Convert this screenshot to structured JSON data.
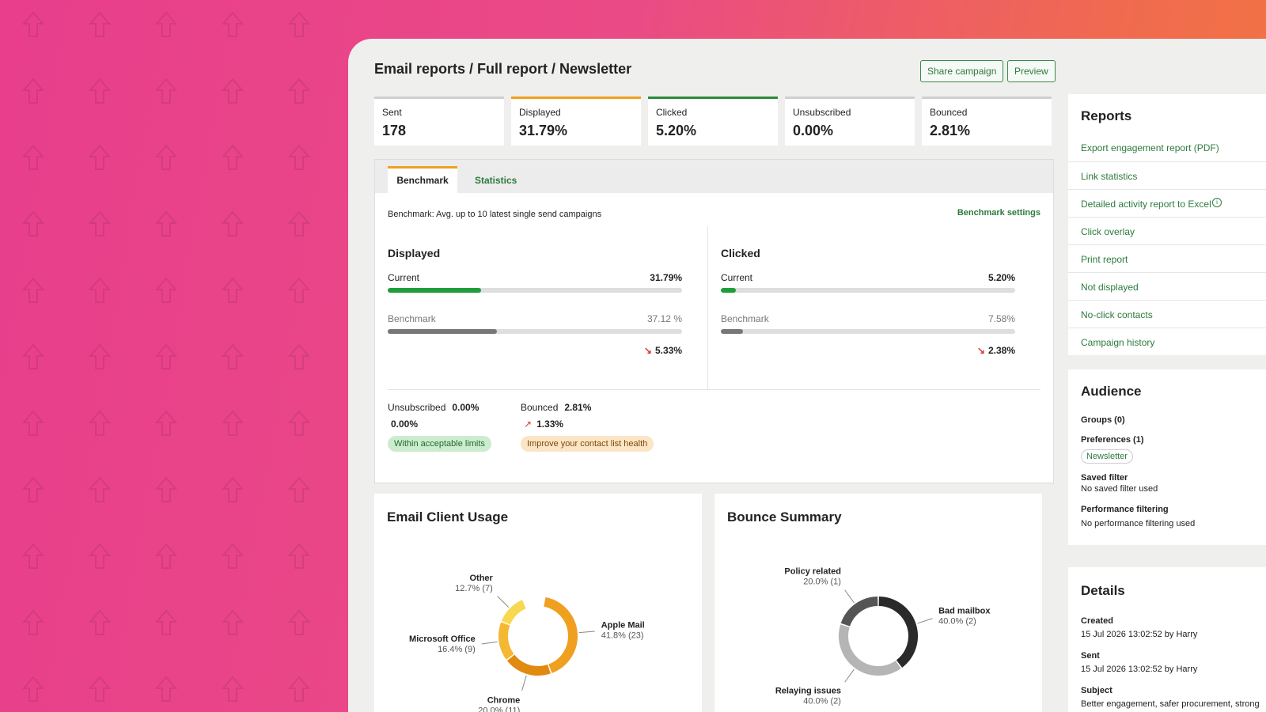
{
  "header": {
    "breadcrumb": "Email reports / Full report / Newsletter",
    "buttons": [
      "Share campaign",
      "Preview"
    ]
  },
  "stats": [
    {
      "label": "Sent",
      "value": "178"
    },
    {
      "label": "Displayed",
      "value": "31.79%"
    },
    {
      "label": "Clicked",
      "value": "5.20%"
    },
    {
      "label": "Unsubscribed",
      "value": "0.00%"
    },
    {
      "label": "Bounced",
      "value": "2.81%"
    }
  ],
  "tabs": [
    "Benchmark",
    "Statistics"
  ],
  "benchmark": {
    "note": "Benchmark: Avg. up to 10 latest single send campaigns",
    "settings_link": "Benchmark settings",
    "panels": [
      {
        "title": "Displayed",
        "current_label": "Current",
        "current": {
          "value": 31.79,
          "label": "31.79%"
        },
        "benchmark_label": "Benchmark",
        "benchmark": {
          "value": 37.12,
          "label": "37.12 %"
        },
        "difference": "5.33%"
      },
      {
        "title": "Clicked",
        "current_label": "Current",
        "current": {
          "value": 5.2,
          "label": "5.20%"
        },
        "benchmark_label": "Benchmark",
        "benchmark": {
          "value": 7.58,
          "label": "7.58%"
        },
        "difference": "2.38%"
      }
    ],
    "minor": [
      {
        "label": "Unsubscribed",
        "value": "0.00%",
        "difference": "0.00%",
        "badge": "Within acceptable limits"
      },
      {
        "label": "Bounced",
        "value": "2.81%",
        "difference": "1.33%",
        "badge": "Improve your contact list health"
      }
    ]
  },
  "charts": [
    {
      "title": "Email Client Usage",
      "segments": [
        {
          "name": "Apple Mail",
          "percent": 41.8,
          "label": "41.8% (23)",
          "color": "#f0a020"
        },
        {
          "name": "Chrome",
          "percent": 20.0,
          "label": "20.0% (11)",
          "color": "#e08a10"
        },
        {
          "name": "Microsoft Office",
          "percent": 16.4,
          "label": "16.4% (9)",
          "color": "#f5b833"
        },
        {
          "name": "Other",
          "percent": 12.7,
          "label": "12.7% (7)",
          "color": "#f8d850"
        }
      ]
    },
    {
      "title": "Bounce Summary",
      "segments": [
        {
          "name": "Policy related",
          "percent": 20.0,
          "label": "20.0% (1)",
          "color": "#555555"
        },
        {
          "name": "Bad mailbox",
          "percent": 40.0,
          "label": "40.0% (2)",
          "color": "#2a2a2a"
        },
        {
          "name": "Relaying issues",
          "percent": 40.0,
          "label": "40.0% (2)",
          "color": "#b5b5b5"
        }
      ]
    }
  ],
  "reports": {
    "title": "Reports",
    "links": [
      "Export engagement report (PDF)",
      "Link statistics",
      "Detailed activity report to Excel",
      "Click overlay",
      "Print report",
      "Not displayed",
      "No-click contacts",
      "Campaign history"
    ]
  },
  "audience": {
    "title": "Audience",
    "groups": "Groups (0)",
    "preferences": "Preferences (1)",
    "tag": "Newsletter",
    "saved_filter_title": "Saved filter",
    "saved_filter": "No saved filter used",
    "performance_title": "Performance filtering",
    "performance": "No performance filtering used"
  },
  "details": {
    "title": "Details",
    "items": [
      {
        "label": "Created",
        "value": "15 Jul 2026 13:02:52 by Harry"
      },
      {
        "label": "Sent",
        "value": "15 Jul 2026 13:02:52 by Harry"
      },
      {
        "label": "Subject",
        "value": "Better engagement, safer procurement, strong"
      }
    ]
  }
}
